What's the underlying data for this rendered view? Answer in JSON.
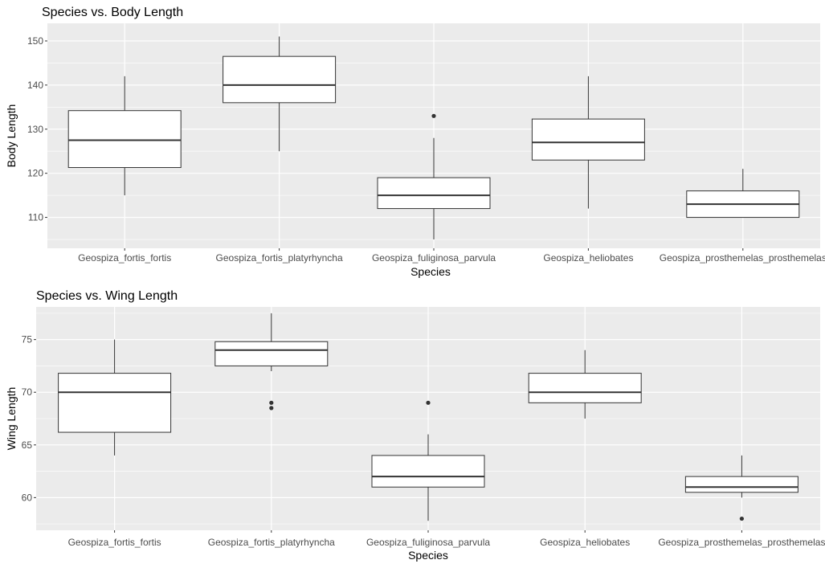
{
  "chart_data": [
    {
      "type": "boxplot",
      "title": "Species vs. Body Length",
      "xlabel": "Species",
      "ylabel": "Body Length",
      "ylim": [
        103,
        154
      ],
      "yticks": [
        110,
        120,
        130,
        140,
        150
      ],
      "grid": true,
      "categories": [
        "Geospiza_fortis_fortis",
        "Geospiza_fortis_platyrhyncha",
        "Geospiza_fuliginosa_parvula",
        "Geospiza_heliobates",
        "Geospiza_prosthemelas_prosthemelas"
      ],
      "boxes": [
        {
          "lower_whisker": 115,
          "q1": 121.3,
          "median": 127.5,
          "q3": 134.2,
          "upper_whisker": 142,
          "outliers": []
        },
        {
          "lower_whisker": 125,
          "q1": 136,
          "median": 140,
          "q3": 146.5,
          "upper_whisker": 151,
          "outliers": []
        },
        {
          "lower_whisker": 105,
          "q1": 112,
          "median": 115,
          "q3": 119,
          "upper_whisker": 128,
          "outliers": [
            133
          ]
        },
        {
          "lower_whisker": 112,
          "q1": 123,
          "median": 127,
          "q3": 132.3,
          "upper_whisker": 142,
          "outliers": []
        },
        {
          "lower_whisker": 110,
          "q1": 110,
          "median": 113,
          "q3": 116,
          "upper_whisker": 121,
          "outliers": []
        }
      ]
    },
    {
      "type": "boxplot",
      "title": "Species vs. Wing Length",
      "xlabel": "Species",
      "ylabel": "Wing Length",
      "ylim": [
        56.9,
        78.1
      ],
      "yticks": [
        60,
        65,
        70,
        75
      ],
      "grid": true,
      "categories": [
        "Geospiza_fortis_fortis",
        "Geospiza_fortis_platyrhyncha",
        "Geospiza_fuliginosa_parvula",
        "Geospiza_heliobates",
        "Geospiza_prosthemelas_prosthemelas"
      ],
      "boxes": [
        {
          "lower_whisker": 64,
          "q1": 66.2,
          "median": 70,
          "q3": 71.8,
          "upper_whisker": 75,
          "outliers": []
        },
        {
          "lower_whisker": 72,
          "q1": 72.5,
          "median": 74,
          "q3": 74.8,
          "upper_whisker": 77.5,
          "outliers": [
            69,
            68.5
          ]
        },
        {
          "lower_whisker": 57.8,
          "q1": 61,
          "median": 62,
          "q3": 64,
          "upper_whisker": 66,
          "outliers": [
            69
          ]
        },
        {
          "lower_whisker": 67.5,
          "q1": 69,
          "median": 70,
          "q3": 71.8,
          "upper_whisker": 74,
          "outliers": []
        },
        {
          "lower_whisker": 60,
          "q1": 60.5,
          "median": 61,
          "q3": 62,
          "upper_whisker": 64,
          "outliers": [
            58
          ]
        }
      ]
    }
  ]
}
